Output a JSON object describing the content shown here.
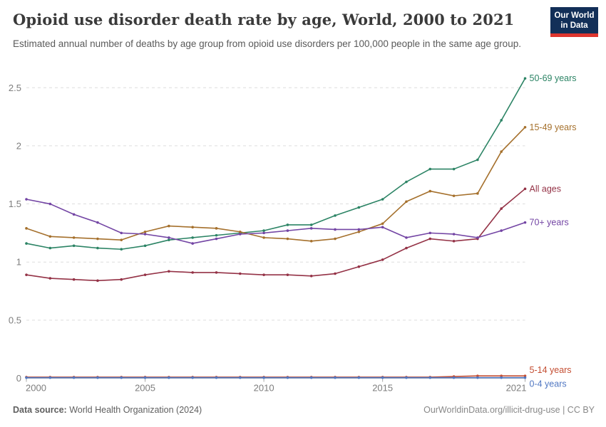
{
  "header": {
    "title": "Opioid use disorder death rate by age, World, 2000 to 2021",
    "subtitle": "Estimated annual number of deaths by age group from opioid use disorders per 100,000 people in the same age group.",
    "logo": {
      "line1": "Our World",
      "line2": "in Data",
      "bg_color": "#122f58",
      "accent_color": "#dd352e"
    }
  },
  "chart_data": {
    "type": "line",
    "title": "Opioid use disorder death rate by age, World, 2000 to 2021",
    "xlabel": "",
    "ylabel": "",
    "x": [
      2000,
      2001,
      2002,
      2003,
      2004,
      2005,
      2006,
      2007,
      2008,
      2009,
      2010,
      2011,
      2012,
      2013,
      2014,
      2015,
      2016,
      2017,
      2018,
      2019,
      2020,
      2021
    ],
    "x_tick_labels": [
      "2000",
      "2005",
      "2010",
      "2015",
      "2021"
    ],
    "y_ticks": [
      0,
      0.5,
      1,
      1.5,
      2,
      2.5
    ],
    "ylim": [
      0,
      2.6
    ],
    "grid": true,
    "legend_position": "line-end-labels-right",
    "grid_color": "#dedede",
    "axis_text_color": "#7d7d7d",
    "series": [
      {
        "name": "50-69 years",
        "color": "#2c8465",
        "values": [
          1.16,
          1.12,
          1.14,
          1.12,
          1.11,
          1.14,
          1.19,
          1.21,
          1.23,
          1.25,
          1.27,
          1.32,
          1.32,
          1.4,
          1.47,
          1.54,
          1.69,
          1.8,
          1.8,
          1.88,
          2.22,
          2.58
        ],
        "label_offset": 0
      },
      {
        "name": "15-49 years",
        "color": "#a5702c",
        "values": [
          1.29,
          1.22,
          1.21,
          1.2,
          1.19,
          1.26,
          1.31,
          1.3,
          1.29,
          1.26,
          1.21,
          1.2,
          1.18,
          1.2,
          1.26,
          1.33,
          1.52,
          1.61,
          1.57,
          1.59,
          1.95,
          2.16
        ],
        "label_offset": 0
      },
      {
        "name": "All ages",
        "color": "#943246",
        "values": [
          0.89,
          0.86,
          0.85,
          0.84,
          0.85,
          0.89,
          0.92,
          0.91,
          0.91,
          0.9,
          0.89,
          0.89,
          0.88,
          0.9,
          0.96,
          1.02,
          1.12,
          1.2,
          1.18,
          1.2,
          1.46,
          1.63
        ],
        "label_offset": 0
      },
      {
        "name": "70+ years",
        "color": "#7345a4",
        "values": [
          1.54,
          1.5,
          1.41,
          1.34,
          1.25,
          1.24,
          1.21,
          1.16,
          1.2,
          1.24,
          1.25,
          1.27,
          1.29,
          1.28,
          1.28,
          1.3,
          1.21,
          1.25,
          1.24,
          1.21,
          1.27,
          1.34
        ],
        "label_offset": 0
      },
      {
        "name": "5-14 years",
        "color": "#c44e32",
        "values": [
          0.01,
          0.01,
          0.01,
          0.01,
          0.01,
          0.01,
          0.01,
          0.01,
          0.01,
          0.01,
          0.01,
          0.01,
          0.01,
          0.01,
          0.01,
          0.01,
          0.01,
          0.01,
          0.015,
          0.02,
          0.02,
          0.02
        ],
        "label_offset": -8
      },
      {
        "name": "0-4 years",
        "color": "#5077c2",
        "values": [
          0.005,
          0.005,
          0.005,
          0.005,
          0.005,
          0.005,
          0.005,
          0.005,
          0.005,
          0.005,
          0.005,
          0.005,
          0.005,
          0.005,
          0.005,
          0.005,
          0.005,
          0.005,
          0.005,
          0.005,
          0.005,
          0.005
        ],
        "label_offset": 9
      }
    ]
  },
  "footer": {
    "source_label": "Data source:",
    "source_value": " World Health Organization (2024)",
    "credit": "OurWorldinData.org/illicit-drug-use | CC BY"
  }
}
